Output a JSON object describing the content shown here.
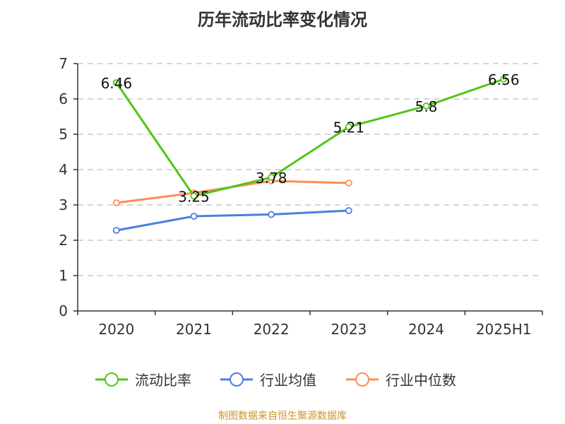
{
  "chart_data": {
    "type": "line",
    "title": "历年流动比率变化情况",
    "categories": [
      "2020",
      "2021",
      "2022",
      "2023",
      "2024",
      "2025H1"
    ],
    "ylim": [
      0,
      7
    ],
    "yticks": [
      0,
      1,
      2,
      3,
      4,
      5,
      6,
      7
    ],
    "grid": true,
    "legend_position": "bottom",
    "series": [
      {
        "name": "流动比率",
        "color": "#52c41a",
        "values": [
          6.46,
          3.25,
          3.78,
          5.21,
          5.8,
          6.56
        ],
        "labels": [
          "6.46",
          "3.25",
          "3.78",
          "5.21",
          "5.8",
          "6.56"
        ]
      },
      {
        "name": "行业均值",
        "color": "#4a7fe0",
        "values": [
          2.28,
          2.68,
          2.73,
          2.84,
          null,
          null
        ]
      },
      {
        "name": "行业中位数",
        "color": "#ff8c55",
        "values": [
          3.06,
          3.34,
          3.68,
          3.62,
          null,
          null
        ]
      }
    ]
  },
  "source": "制图数据来自恒生聚源数据库"
}
